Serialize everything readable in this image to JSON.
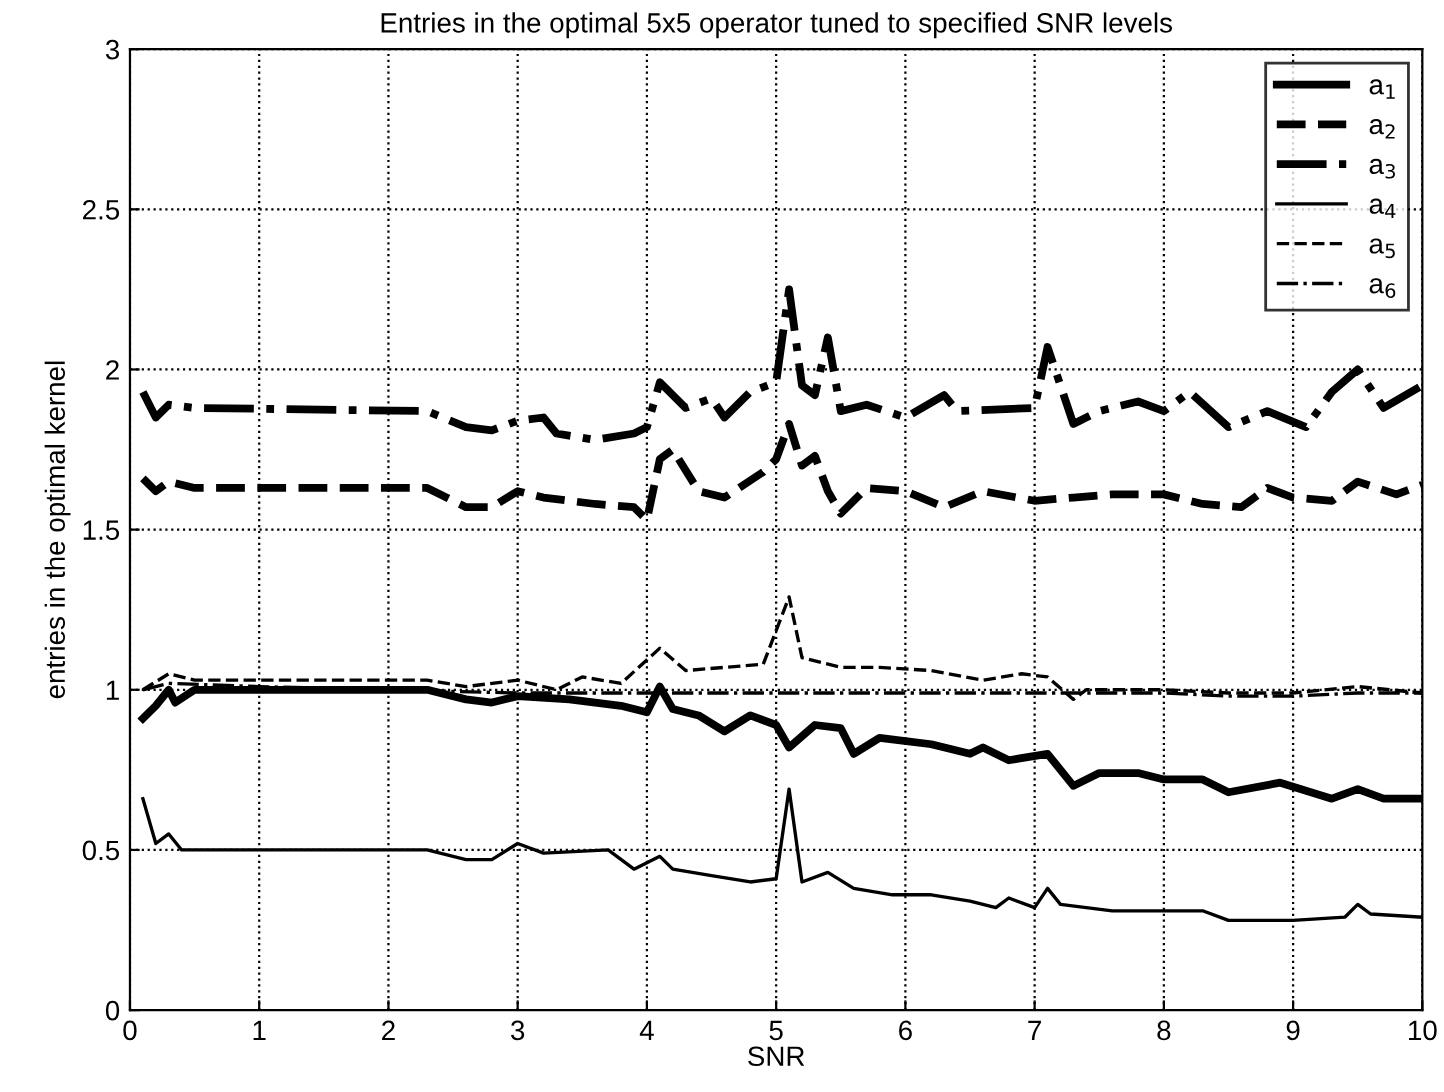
{
  "chart_data": {
    "type": "line",
    "title": "Entries in the optimal 5x5 operator tuned to specified SNR levels",
    "xlabel": "SNR",
    "ylabel": "entries in the optimal kernel",
    "xlim": [
      0,
      10
    ],
    "ylim": [
      0,
      3
    ],
    "xticks": [
      0,
      1,
      2,
      3,
      4,
      5,
      6,
      7,
      8,
      9,
      10
    ],
    "yticks": [
      0,
      0.5,
      1,
      1.5,
      2,
      2.5,
      3
    ],
    "grid": true,
    "legend": "top right",
    "marker": "none",
    "series": [
      {
        "name": "a$_{1}$",
        "color": "#000000",
        "line_style": "solid",
        "x": [
          0.1,
          0.2,
          0.3,
          0.35,
          0.5,
          1,
          2.3,
          2.6,
          2.8,
          3.0,
          3.4,
          3.8,
          4.0,
          4.1,
          4.2,
          4.4,
          4.6,
          4.8,
          5.0,
          5.1,
          5.3,
          5.5,
          5.6,
          5.8,
          6.2,
          6.5,
          6.6,
          6.8,
          7.1,
          7.3,
          7.5,
          7.8,
          8.0,
          8.3,
          8.5,
          8.9,
          9.3,
          9.5,
          9.7,
          10
        ],
        "values": [
          0.91,
          0.95,
          1.0,
          0.96,
          1.0,
          1.0,
          1.0,
          0.97,
          0.96,
          0.98,
          0.97,
          0.95,
          0.93,
          1.01,
          0.94,
          0.92,
          0.87,
          0.92,
          0.89,
          0.82,
          0.89,
          0.88,
          0.8,
          0.85,
          0.83,
          0.8,
          0.82,
          0.78,
          0.8,
          0.7,
          0.74,
          0.74,
          0.72,
          0.72,
          0.68,
          0.71,
          0.66,
          0.69,
          0.66,
          0.66
        ]
      },
      {
        "name": "a$_{2}$",
        "color": "#000000",
        "line_style": "dashed",
        "x": [
          0.1,
          0.2,
          0.3,
          0.5,
          2.3,
          2.6,
          2.8,
          3.0,
          3.2,
          3.6,
          3.9,
          4.0,
          4.1,
          4.2,
          4.4,
          4.6,
          4.9,
          5.0,
          5.1,
          5.2,
          5.3,
          5.4,
          5.5,
          5.7,
          6.0,
          6.3,
          6.6,
          7.0,
          7.3,
          7.6,
          8.0,
          8.3,
          8.6,
          8.8,
          9.0,
          9.3,
          9.5,
          9.8,
          10
        ],
        "values": [
          1.66,
          1.62,
          1.65,
          1.63,
          1.63,
          1.57,
          1.57,
          1.62,
          1.6,
          1.58,
          1.57,
          1.53,
          1.72,
          1.75,
          1.62,
          1.6,
          1.68,
          1.72,
          1.83,
          1.7,
          1.73,
          1.62,
          1.55,
          1.63,
          1.62,
          1.57,
          1.62,
          1.59,
          1.6,
          1.61,
          1.61,
          1.58,
          1.57,
          1.63,
          1.6,
          1.59,
          1.65,
          1.61,
          1.64
        ]
      },
      {
        "name": "a$_{3}$",
        "color": "#000000",
        "line_style": "dashdot",
        "x": [
          0.1,
          0.2,
          0.3,
          0.5,
          2.3,
          2.6,
          2.8,
          3.0,
          3.2,
          3.3,
          3.6,
          3.9,
          4.0,
          4.1,
          4.3,
          4.5,
          4.6,
          4.8,
          5.0,
          5.1,
          5.2,
          5.3,
          5.4,
          5.5,
          5.7,
          6.0,
          6.3,
          6.4,
          7.0,
          7.1,
          7.3,
          7.5,
          7.8,
          8.0,
          8.2,
          8.5,
          8.8,
          9.1,
          9.3,
          9.5,
          9.7,
          10
        ],
        "values": [
          1.93,
          1.85,
          1.89,
          1.88,
          1.87,
          1.82,
          1.81,
          1.84,
          1.85,
          1.8,
          1.78,
          1.8,
          1.82,
          1.96,
          1.88,
          1.91,
          1.85,
          1.93,
          1.96,
          2.25,
          1.95,
          1.92,
          2.1,
          1.87,
          1.89,
          1.85,
          1.92,
          1.87,
          1.88,
          2.07,
          1.83,
          1.87,
          1.9,
          1.87,
          1.93,
          1.82,
          1.87,
          1.82,
          1.93,
          2.0,
          1.88,
          1.95
        ]
      },
      {
        "name": "a$_{4}$",
        "color": "#000000",
        "line_style": "solid",
        "x": [
          0.1,
          0.2,
          0.3,
          0.4,
          1,
          2.3,
          2.6,
          2.8,
          3.0,
          3.2,
          3.7,
          3.9,
          4.1,
          4.2,
          4.5,
          4.8,
          5.0,
          5.1,
          5.2,
          5.4,
          5.6,
          5.9,
          6.2,
          6.5,
          6.7,
          6.8,
          7.0,
          7.1,
          7.2,
          7.6,
          8.0,
          8.3,
          8.5,
          9.0,
          9.4,
          9.5,
          9.6,
          10
        ],
        "values": [
          0.66,
          0.52,
          0.55,
          0.5,
          0.5,
          0.5,
          0.47,
          0.47,
          0.52,
          0.49,
          0.5,
          0.44,
          0.48,
          0.44,
          0.42,
          0.4,
          0.41,
          0.69,
          0.4,
          0.43,
          0.38,
          0.36,
          0.36,
          0.34,
          0.32,
          0.35,
          0.32,
          0.38,
          0.33,
          0.31,
          0.31,
          0.31,
          0.28,
          0.28,
          0.29,
          0.33,
          0.3,
          0.29
        ]
      },
      {
        "name": "a$_{5}$",
        "color": "#000000",
        "line_style": "dashed",
        "x": [
          0.1,
          0.3,
          0.5,
          2.3,
          2.6,
          3.0,
          3.3,
          3.5,
          3.8,
          4.1,
          4.3,
          4.6,
          4.9,
          5.1,
          5.2,
          5.5,
          5.8,
          6.2,
          6.6,
          6.9,
          7.1,
          7.3,
          7.4,
          8.0,
          8.5,
          9.0,
          9.5,
          10
        ],
        "values": [
          1.0,
          1.05,
          1.03,
          1.03,
          1.01,
          1.03,
          1.0,
          1.04,
          1.02,
          1.13,
          1.06,
          1.07,
          1.08,
          1.29,
          1.1,
          1.07,
          1.07,
          1.06,
          1.03,
          1.05,
          1.04,
          0.97,
          1.0,
          1.0,
          0.99,
          0.99,
          1.01,
          0.99
        ]
      },
      {
        "name": "a$_{6}$",
        "color": "#000000",
        "line_style": "dashdot",
        "x": [
          0.1,
          0.3,
          1,
          3,
          5,
          7,
          8,
          8.5,
          9,
          9.5,
          10
        ],
        "values": [
          1.0,
          1.02,
          1.01,
          0.99,
          0.99,
          0.99,
          0.99,
          0.98,
          0.98,
          0.99,
          0.99
        ]
      }
    ]
  }
}
